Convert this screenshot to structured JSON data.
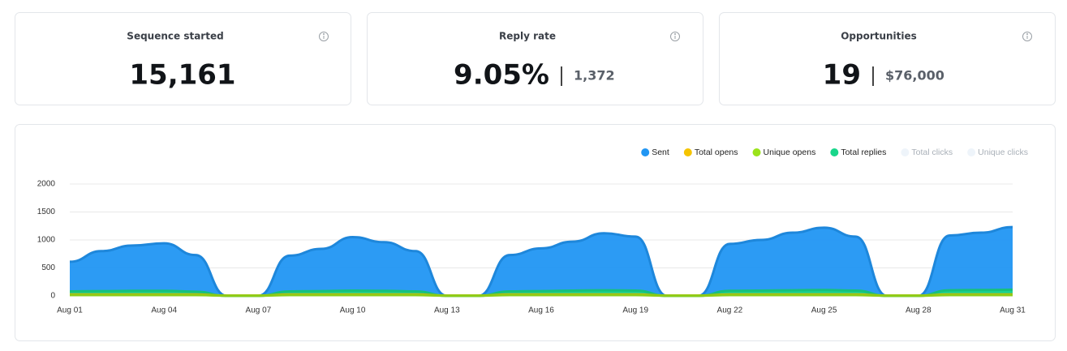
{
  "cards": [
    {
      "label": "Sequence started",
      "value": "15,161"
    },
    {
      "label": "Reply rate",
      "value": "9.05%",
      "secondary": "1,372"
    },
    {
      "label": "Opportunities",
      "value": "19",
      "secondary": "$76,000"
    }
  ],
  "chart_data": {
    "type": "area",
    "categories": [
      "Aug 01",
      null,
      null,
      "Aug 04",
      null,
      null,
      "Aug 07",
      null,
      null,
      "Aug 10",
      null,
      null,
      "Aug 13",
      null,
      null,
      "Aug 16",
      null,
      null,
      "Aug 19",
      null,
      null,
      "Aug 22",
      null,
      null,
      "Aug 25",
      null,
      null,
      "Aug 28",
      null,
      null,
      "Aug 31"
    ],
    "series": [
      {
        "name": "Sent",
        "color": "#2196f3",
        "values": [
          610,
          800,
          900,
          940,
          730,
          0,
          0,
          720,
          840,
          1050,
          960,
          800,
          0,
          0,
          730,
          850,
          970,
          1120,
          1060,
          0,
          0,
          930,
          1000,
          1130,
          1220,
          1060,
          0,
          0,
          1080,
          1130,
          1230
        ]
      },
      {
        "name": "Total opens",
        "color": "#f5c400",
        "values": [
          25,
          25,
          25,
          25,
          25,
          5,
          5,
          25,
          25,
          25,
          25,
          25,
          5,
          5,
          25,
          25,
          25,
          25,
          25,
          5,
          5,
          25,
          25,
          25,
          25,
          25,
          5,
          5,
          25,
          25,
          25
        ]
      },
      {
        "name": "Unique opens",
        "color": "#9be31a",
        "values": [
          15,
          15,
          15,
          15,
          15,
          3,
          3,
          15,
          15,
          15,
          15,
          15,
          3,
          3,
          15,
          15,
          15,
          15,
          15,
          3,
          3,
          15,
          15,
          15,
          15,
          15,
          3,
          3,
          15,
          15,
          15
        ]
      },
      {
        "name": "Total replies",
        "color": "#18d68a",
        "values": [
          80,
          85,
          90,
          90,
          75,
          0,
          0,
          80,
          85,
          95,
          90,
          80,
          0,
          0,
          80,
          85,
          95,
          100,
          95,
          0,
          0,
          90,
          95,
          100,
          105,
          95,
          0,
          0,
          100,
          105,
          110
        ]
      },
      {
        "name": "Total clicks",
        "color": "#eef4fa",
        "hidden": true,
        "values": [
          0,
          0,
          0,
          0,
          0,
          0,
          0,
          0,
          0,
          0,
          0,
          0,
          0,
          0,
          0,
          0,
          0,
          0,
          0,
          0,
          0,
          0,
          0,
          0,
          0,
          0,
          0,
          0,
          0,
          0,
          0
        ]
      },
      {
        "name": "Unique clicks",
        "color": "#eef4fa",
        "hidden": true,
        "values": [
          0,
          0,
          0,
          0,
          0,
          0,
          0,
          0,
          0,
          0,
          0,
          0,
          0,
          0,
          0,
          0,
          0,
          0,
          0,
          0,
          0,
          0,
          0,
          0,
          0,
          0,
          0,
          0,
          0,
          0,
          0
        ]
      }
    ],
    "ylim": [
      0,
      2000
    ],
    "yticks": [
      0,
      500,
      1000,
      1500,
      2000
    ],
    "grid": true,
    "legend": "top-right"
  }
}
